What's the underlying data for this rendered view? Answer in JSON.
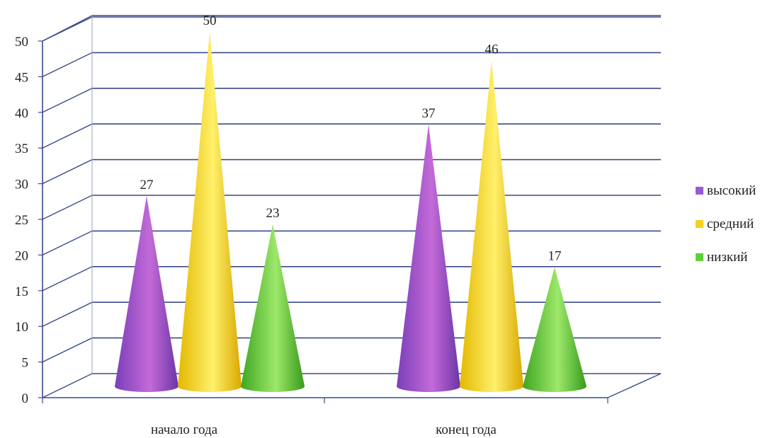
{
  "chart_data": {
    "type": "bar",
    "style": "3d-cone",
    "categories": [
      "начало года",
      "конец года"
    ],
    "series": [
      {
        "name": "высокий",
        "values": [
          27,
          37
        ],
        "color": "#9b59d6"
      },
      {
        "name": "средний",
        "values": [
          50,
          46
        ],
        "color": "#f4d020"
      },
      {
        "name": "низкий",
        "values": [
          23,
          17
        ],
        "color": "#5fcf3a"
      }
    ],
    "ylim": [
      0,
      50
    ],
    "yticks": [
      "0",
      "5",
      "10",
      "15",
      "20",
      "25",
      "30",
      "35",
      "40",
      "45",
      "50"
    ],
    "grid": true,
    "legend": "right"
  }
}
